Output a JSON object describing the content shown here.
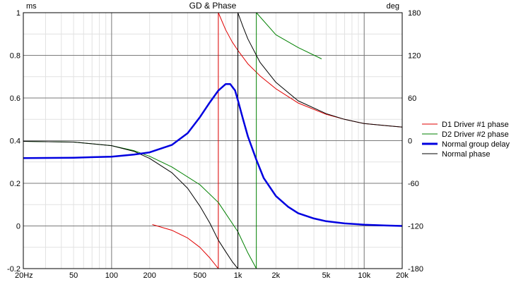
{
  "chart_data": {
    "type": "line",
    "title": "GD & Phase",
    "left_unit": "ms",
    "right_unit": "deg",
    "x_scale": "log",
    "xlim": [
      20,
      20000
    ],
    "ylim_left": [
      -0.2,
      1.0
    ],
    "ylim_right": [
      -180,
      180
    ],
    "x_tick_labels": [
      {
        "value": 20,
        "label": "20Hz"
      },
      {
        "value": 50,
        "label": "50"
      },
      {
        "value": 100,
        "label": "100"
      },
      {
        "value": 200,
        "label": "200"
      },
      {
        "value": 500,
        "label": "500"
      },
      {
        "value": 1000,
        "label": "1k"
      },
      {
        "value": 2000,
        "label": "2k"
      },
      {
        "value": 5000,
        "label": "5k"
      },
      {
        "value": 10000,
        "label": "10k"
      },
      {
        "value": 20000,
        "label": "20k"
      }
    ],
    "left_ticks": [
      {
        "value": 1.0,
        "label": "1"
      },
      {
        "value": 0.8,
        "label": "0.8"
      },
      {
        "value": 0.6,
        "label": "0.6"
      },
      {
        "value": 0.4,
        "label": "0.4"
      },
      {
        "value": 0.2,
        "label": "0.2"
      },
      {
        "value": 0.0,
        "label": "0"
      },
      {
        "value": -0.2,
        "label": "-0.2"
      }
    ],
    "right_ticks": [
      {
        "value": 180,
        "label": "180"
      },
      {
        "value": 120,
        "label": "120"
      },
      {
        "value": 60,
        "label": "60"
      },
      {
        "value": 0,
        "label": "0"
      },
      {
        "value": -60,
        "label": "-60"
      },
      {
        "value": -120,
        "label": "-120"
      },
      {
        "value": -180,
        "label": "-180"
      }
    ],
    "grid": true,
    "legend_position": "right",
    "series": [
      {
        "name": "D1 Driver #1 phase",
        "color": "#e00000",
        "axis": "right",
        "segments": [
          {
            "x": [
              210,
              300,
              400,
              500,
              600,
              700
            ],
            "y": [
              -118,
              -126,
              -137,
              -150,
              -165,
              -180
            ]
          },
          {
            "x": [
              700,
              800,
              900,
              1000,
              1200,
              1500,
              2000,
              3000,
              5000,
              7000,
              10000,
              15000,
              20000
            ],
            "y": [
              180,
              156,
              139,
              127,
              108,
              91,
              73,
              53,
              37,
              30,
              24,
              21,
              19
            ]
          }
        ]
      },
      {
        "name": "D2 Driver #2 phase",
        "color": "#008000",
        "axis": "right",
        "segments": [
          {
            "x": [
              20,
              50,
              100,
              150,
              200,
              300,
              500,
              700,
              1000,
              1200,
              1400
            ],
            "y": [
              -1,
              -2,
              -7,
              -14,
              -22,
              -37,
              -62,
              -87,
              -128,
              -158,
              -180
            ]
          },
          {
            "x": [
              1400,
              2000,
              3000,
              4600
            ],
            "y": [
              180,
              149,
              131,
              115
            ]
          }
        ]
      },
      {
        "name": "Normal group delay",
        "color": "#0000e0",
        "axis": "left",
        "width": 2.5,
        "segments": [
          {
            "x": [
              20,
              50,
              100,
              150,
              200,
              300,
              400,
              500,
              600,
              700,
              800,
              870,
              950,
              1000,
              1100,
              1200,
              1400,
              1600,
              2000,
              2500,
              3000,
              4000,
              5000,
              7000,
              10000,
              15000,
              20000
            ],
            "y": [
              0.318,
              0.32,
              0.325,
              0.335,
              0.345,
              0.38,
              0.435,
              0.51,
              0.58,
              0.635,
              0.665,
              0.665,
              0.635,
              0.59,
              0.5,
              0.42,
              0.31,
              0.225,
              0.14,
              0.09,
              0.06,
              0.035,
              0.022,
              0.012,
              0.006,
              0.002,
              0.0
            ]
          }
        ]
      },
      {
        "name": "Normal phase",
        "color": "#000000",
        "axis": "right",
        "segments": [
          {
            "x": [
              20,
              50,
              100,
              150,
              200,
              300,
              400,
              500,
              600,
              700,
              800,
              900,
              1000
            ],
            "y": [
              -1,
              -2,
              -7,
              -15,
              -25,
              -45,
              -67,
              -92,
              -116,
              -140,
              -156,
              -170,
              -180
            ]
          },
          {
            "x": [
              1000,
              1100,
              1200,
              1500,
              2000,
              3000,
              5000,
              7000,
              10000,
              15000,
              20000
            ],
            "y": [
              180,
              160,
              143,
              110,
              82,
              56,
              38,
              30,
              24,
              21,
              19
            ]
          }
        ]
      }
    ]
  }
}
